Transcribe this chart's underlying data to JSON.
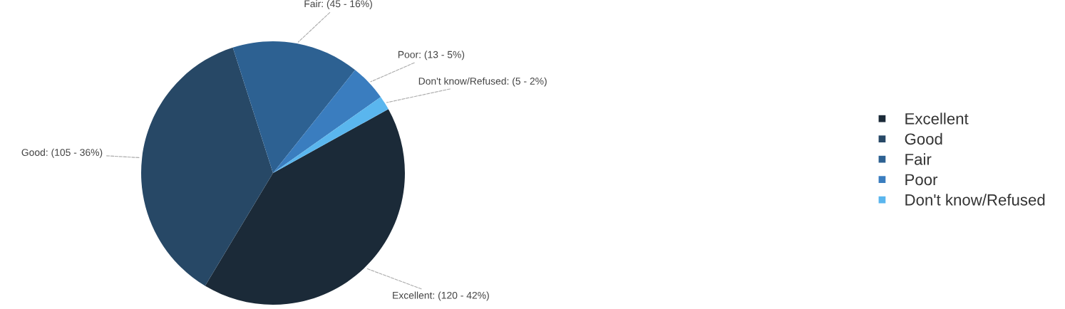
{
  "chart_data": {
    "type": "pie",
    "categories": [
      "Excellent",
      "Good",
      "Fair",
      "Poor",
      "Don't know/Refused"
    ],
    "values": [
      120,
      105,
      45,
      13,
      5
    ],
    "value_labels": [
      "Excellent: (120 - 42%)",
      "Good: (105 - 36%)",
      "Fair: (45 - 16%)",
      "Poor: (13 - 5%)",
      "Don't know/Refused: (5 - 2%)"
    ],
    "colors": [
      "#1b2a38",
      "#274866",
      "#2d6192",
      "#3a7dbf",
      "#5ab6ee"
    ],
    "legend": "right"
  }
}
